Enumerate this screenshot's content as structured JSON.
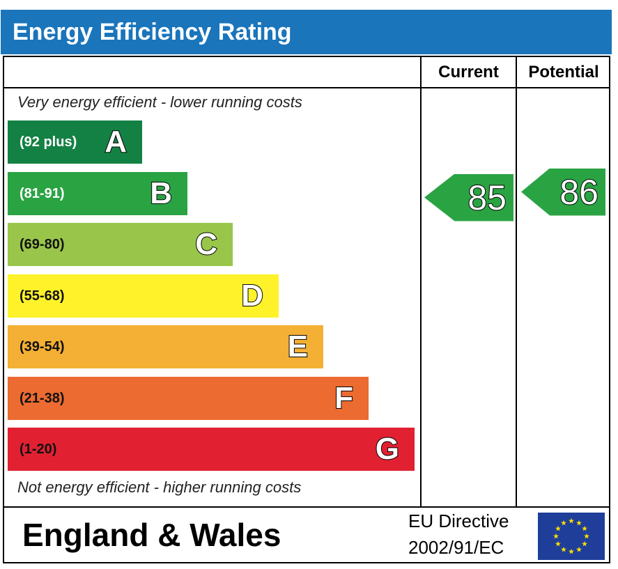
{
  "header": {
    "title": "Energy Efficiency Rating"
  },
  "columns": {
    "current": "Current",
    "potential": "Potential"
  },
  "notes": {
    "top": "Very energy efficient - lower running costs",
    "bottom": "Not energy efficient - higher running costs"
  },
  "footer": {
    "region": "England & Wales",
    "directive_line1": "EU Directive",
    "directive_line2": "2002/91/EC",
    "flag_icon": "eu-flag-icon"
  },
  "chart_data": {
    "type": "bar",
    "title": "Energy Efficiency Rating",
    "categories": [
      "A",
      "B",
      "C",
      "D",
      "E",
      "F",
      "G"
    ],
    "bands": [
      {
        "letter": "A",
        "range": "(92 plus)",
        "color": "#138144"
      },
      {
        "letter": "B",
        "range": "(81-91)",
        "color": "#2aa343"
      },
      {
        "letter": "C",
        "range": "(69-80)",
        "color": "#99c64a"
      },
      {
        "letter": "D",
        "range": "(55-68)",
        "color": "#fff22a"
      },
      {
        "letter": "E",
        "range": "(39-54)",
        "color": "#f4b034"
      },
      {
        "letter": "F",
        "range": "(21-38)",
        "color": "#ec6b31"
      },
      {
        "letter": "G",
        "range": "(1-20)",
        "color": "#e12131"
      }
    ],
    "current": {
      "label": "Current",
      "value": "85",
      "band": "B",
      "color": "#2aa343"
    },
    "potential": {
      "label": "Potential",
      "value": "86",
      "band": "B",
      "color": "#2aa343"
    }
  }
}
